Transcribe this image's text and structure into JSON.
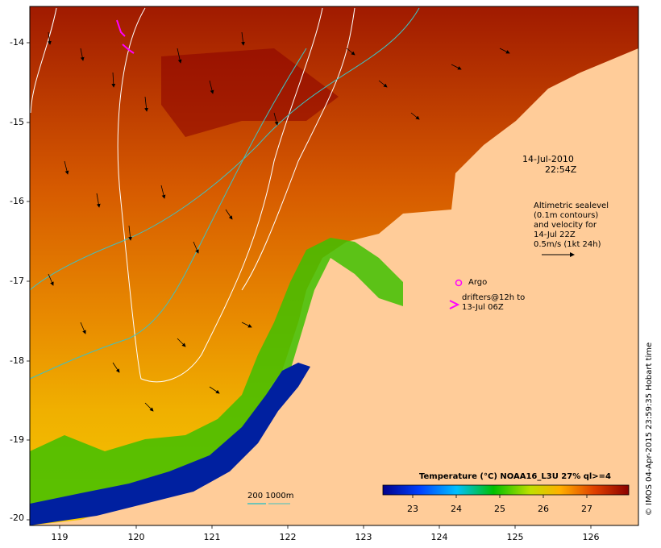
{
  "map": {
    "date": "14-Jul-2010",
    "time": "22:54Z",
    "y_ticks": [
      "-14",
      "-15",
      "-16",
      "-17",
      "-18",
      "-19",
      "-20"
    ],
    "x_ticks": [
      "119",
      "120",
      "121",
      "122",
      "123",
      "124",
      "125",
      "126"
    ]
  },
  "legend": {
    "altimetry_lines": [
      "Altimetric sealevel",
      "(0.1m contours)",
      "and velocity for",
      "14-Jul 22Z",
      "0.5m/s (1kt 24h)"
    ],
    "argo_label": "Argo",
    "drifters_lines": [
      "drifters@12h to",
      "13-Jul 06Z"
    ],
    "bathy_label": "200  1000m"
  },
  "colorbar": {
    "title": "Temperature (°C) NOAA16_L3U 27% ql>=4",
    "ticks": [
      "23",
      "24",
      "25",
      "26",
      "27"
    ],
    "colors": {
      "cold": "#00008b",
      "mid": "#00c000",
      "warm": "#ffa000",
      "hot": "#8b0000"
    }
  },
  "credit": "© IMOS 04-Apr-2015 23:59:35 Hobart time",
  "colors": {
    "land": "#ffcc99",
    "argo": "#ff00ff",
    "contour": "#ffffff",
    "bathy": "#40c0c0"
  }
}
